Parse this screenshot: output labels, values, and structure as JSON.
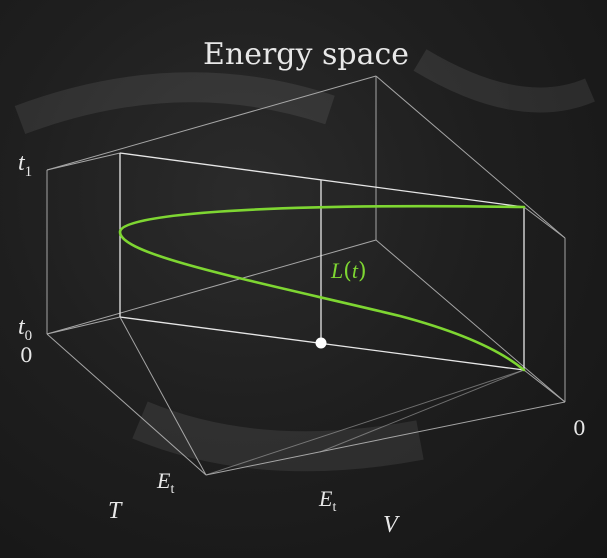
{
  "title": "Energy space",
  "axis_labels": {
    "time_top": "t",
    "time_top_sub": "1",
    "time_bottom": "t",
    "time_bottom_sub": "0",
    "zero_left": "0",
    "zero_right": "0",
    "kinetic_tick": "E",
    "kinetic_tick_sub": "t",
    "potential_tick": "E",
    "potential_tick_sub": "t",
    "kinetic_axis": "T",
    "potential_axis": "V"
  },
  "curve_label": {
    "name": "L",
    "open": "(",
    "var": "t",
    "close": ")"
  },
  "colors": {
    "background": "#1c1c1c",
    "frame": "#d8d8d8",
    "curve": "#7ed632",
    "text": "#e8e8e8",
    "point": "#ffffff"
  }
}
